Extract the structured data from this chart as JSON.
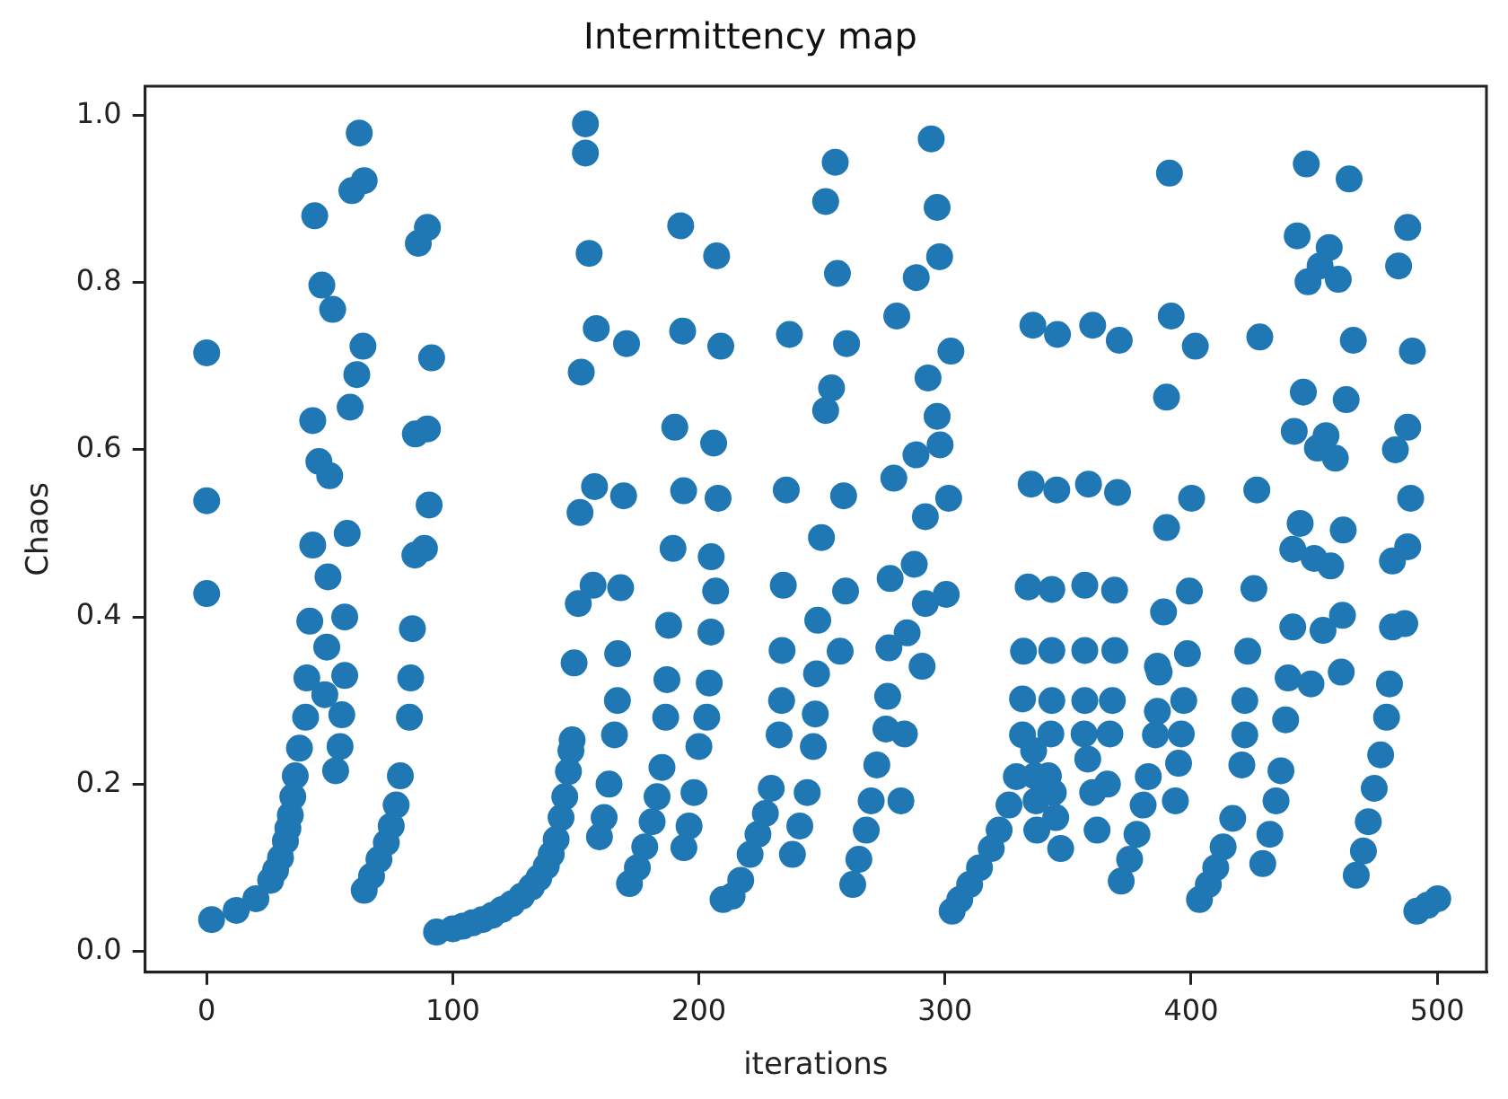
{
  "chart_data": {
    "type": "scatter",
    "title": "Intermittency map",
    "xlabel": "iterations",
    "ylabel": "Chaos",
    "xlim": [
      -25,
      520
    ],
    "ylim": [
      -0.025,
      1.035
    ],
    "xticks": [
      0,
      100,
      200,
      300,
      400,
      500
    ],
    "yticks": [
      {
        "value": 0,
        "label": "0.0"
      },
      0.2,
      0.4,
      0.6,
      0.8,
      {
        "value": 1,
        "label": "1.0"
      }
    ],
    "grid": false,
    "legend": false,
    "marker": "circle",
    "series": [
      {
        "color": "#1f77b4",
        "x": [
          0,
          0,
          0,
          2,
          12,
          20,
          26,
          28,
          30,
          32,
          33,
          34,
          35,
          36,
          37.7,
          40.2,
          40.7,
          41.9,
          43.1,
          43.1,
          43.9,
          46.8,
          51.2,
          62,
          59,
          64,
          63.5,
          61,
          58.3,
          45.6,
          50,
          57.1,
          49.3,
          48.8,
          56.1,
          48,
          56.1,
          54.9,
          54.2,
          52.4,
          64,
          67,
          70,
          73,
          75,
          77,
          78.7,
          82.4,
          82.9,
          83.6,
          84.6,
          88.5,
          86,
          89.7,
          91.4,
          84.8,
          89.7,
          90.4,
          93.4,
          100,
          104,
          108,
          112,
          116,
          120,
          124,
          128,
          132,
          135,
          138,
          140,
          142,
          144,
          145.5,
          147,
          148,
          148.5,
          149.3,
          151,
          151.7,
          152.2,
          153.9,
          153.9,
          155.4,
          158.3,
          157.6,
          157,
          170.6,
          169.4,
          168.2,
          159.6,
          161.5,
          163.5,
          165.7,
          166.9,
          167,
          171.8,
          175,
          178,
          181,
          183,
          185,
          186.5,
          187,
          187.7,
          189.5,
          190.2,
          193.4,
          192.6,
          193.8,
          193.9,
          196,
          198,
          200,
          203.2,
          204.2,
          204.9,
          206.8,
          206,
          207.2,
          208.9,
          207.8,
          205,
          209.8,
          213.5,
          217,
          220.8,
          224,
          227,
          229.4,
          232.6,
          233.6,
          233.8,
          234.3,
          236.8,
          235.5,
          238,
          241,
          244,
          246.5,
          247.3,
          247.8,
          248.3,
          249.8,
          258.8,
          260,
          256.3,
          251.5,
          255.4,
          253.9,
          251.5,
          257.4,
          259.6,
          262.5,
          265,
          268,
          270,
          272.3,
          276,
          276.7,
          277.2,
          277.7,
          279.2,
          280.4,
          282.1,
          283.5,
          284.6,
          287.5,
          290.7,
          292,
          300.5,
          292,
          301.5,
          288.2,
          298,
          296.8,
          293.1,
          302.4,
          288.3,
          297.8,
          296.8,
          294.4,
          302.9,
          306,
          310,
          314,
          318.8,
          322,
          326,
          329,
          331.5,
          331.5,
          331.9,
          333.8,
          335,
          335.7,
          337.3,
          337,
          336.5,
          336,
          343.4,
          343.4,
          343.4,
          343,
          342,
          345.7,
          345.4,
          347,
          345,
          344,
          356.8,
          356.8,
          356.8,
          356.5,
          358.3,
          360,
          361.8,
          360,
          358,
          368.9,
          369,
          368,
          367,
          370.1,
          370.8,
          366,
          371.6,
          375,
          378,
          380.5,
          382.6,
          385.5,
          386.3,
          387,
          388.8,
          390,
          390,
          391.9,
          391.2,
          386.3,
          393.6,
          394.9,
          396,
          397,
          398.5,
          399.3,
          400.2,
          401.7,
          403.4,
          407,
          410,
          413,
          416.9,
          420.6,
          421.8,
          421.8,
          423,
          425.5,
          426.7,
          427.9,
          429.1,
          432,
          434.5,
          436.5,
          438.4,
          439.4,
          441.3,
          441.3,
          448.7,
          453.6,
          461,
          461.5,
          446.8,
          464.2,
          443.1,
          456.1,
          452.4,
          447.5,
          459.8,
          465.9,
          463,
          445.6,
          441.9,
          454.8,
          451.3,
          458.6,
          444.3,
          461.8,
          450,
          456.7,
          467.1,
          470,
          472,
          474.4,
          477,
          479.4,
          480.6,
          481.8,
          486.8,
          481.8,
          488,
          483,
          488,
          489.2,
          489.9,
          484.3,
          488,
          491.7,
          496,
          500.2
        ],
        "values": [
          0.716,
          0.539,
          0.428,
          0.038,
          0.049,
          0.063,
          0.085,
          0.097,
          0.112,
          0.132,
          0.147,
          0.163,
          0.185,
          0.21,
          0.243,
          0.28,
          0.327,
          0.395,
          0.486,
          0.635,
          0.88,
          0.797,
          0.768,
          0.979,
          0.91,
          0.922,
          0.724,
          0.69,
          0.651,
          0.586,
          0.569,
          0.5,
          0.448,
          0.364,
          0.4,
          0.307,
          0.33,
          0.283,
          0.245,
          0.216,
          0.073,
          0.09,
          0.11,
          0.13,
          0.15,
          0.175,
          0.21,
          0.28,
          0.327,
          0.386,
          0.474,
          0.482,
          0.847,
          0.866,
          0.71,
          0.619,
          0.625,
          0.534,
          0.023,
          0.027,
          0.03,
          0.034,
          0.038,
          0.043,
          0.05,
          0.057,
          0.066,
          0.077,
          0.088,
          0.102,
          0.116,
          0.134,
          0.16,
          0.185,
          0.215,
          0.24,
          0.253,
          0.345,
          0.416,
          0.525,
          0.693,
          0.955,
          0.99,
          0.835,
          0.745,
          0.556,
          0.438,
          0.727,
          0.545,
          0.435,
          0.137,
          0.16,
          0.2,
          0.259,
          0.3,
          0.356,
          0.081,
          0.1,
          0.125,
          0.155,
          0.185,
          0.22,
          0.28,
          0.325,
          0.39,
          0.482,
          0.627,
          0.742,
          0.868,
          0.551,
          0.124,
          0.15,
          0.19,
          0.245,
          0.28,
          0.321,
          0.382,
          0.431,
          0.608,
          0.832,
          0.724,
          0.542,
          0.472,
          0.062,
          0.066,
          0.085,
          0.116,
          0.14,
          0.165,
          0.195,
          0.259,
          0.3,
          0.36,
          0.438,
          0.738,
          0.552,
          0.116,
          0.15,
          0.19,
          0.245,
          0.284,
          0.332,
          0.396,
          0.495,
          0.545,
          0.727,
          0.811,
          0.897,
          0.944,
          0.674,
          0.647,
          0.359,
          0.431,
          0.08,
          0.11,
          0.145,
          0.18,
          0.223,
          0.266,
          0.305,
          0.363,
          0.446,
          0.566,
          0.76,
          0.18,
          0.26,
          0.381,
          0.463,
          0.341,
          0.416,
          0.427,
          0.52,
          0.542,
          0.594,
          0.606,
          0.64,
          0.686,
          0.718,
          0.806,
          0.831,
          0.89,
          0.972,
          0.048,
          0.062,
          0.08,
          0.1,
          0.123,
          0.145,
          0.175,
          0.209,
          0.259,
          0.302,
          0.359,
          0.436,
          0.559,
          0.749,
          0.145,
          0.18,
          0.21,
          0.24,
          0.433,
          0.36,
          0.3,
          0.26,
          0.21,
          0.738,
          0.552,
          0.123,
          0.16,
          0.19,
          0.438,
          0.36,
          0.3,
          0.26,
          0.559,
          0.749,
          0.145,
          0.19,
          0.23,
          0.432,
          0.36,
          0.3,
          0.26,
          0.549,
          0.731,
          0.2,
          0.084,
          0.11,
          0.14,
          0.175,
          0.209,
          0.259,
          0.287,
          0.334,
          0.406,
          0.507,
          0.663,
          0.76,
          0.931,
          0.341,
          0.18,
          0.225,
          0.26,
          0.3,
          0.356,
          0.431,
          0.542,
          0.724,
          0.062,
          0.08,
          0.1,
          0.125,
          0.159,
          0.223,
          0.259,
          0.3,
          0.359,
          0.434,
          0.552,
          0.735,
          0.105,
          0.14,
          0.18,
          0.216,
          0.277,
          0.327,
          0.388,
          0.481,
          0.32,
          0.384,
          0.334,
          0.402,
          0.942,
          0.924,
          0.856,
          0.842,
          0.82,
          0.801,
          0.804,
          0.731,
          0.66,
          0.669,
          0.622,
          0.617,
          0.602,
          0.59,
          0.512,
          0.504,
          0.47,
          0.461,
          0.091,
          0.12,
          0.155,
          0.195,
          0.235,
          0.28,
          0.32,
          0.388,
          0.392,
          0.467,
          0.484,
          0.6,
          0.627,
          0.542,
          0.718,
          0.82,
          0.866,
          0.048,
          0.055,
          0.063
        ]
      }
    ]
  }
}
